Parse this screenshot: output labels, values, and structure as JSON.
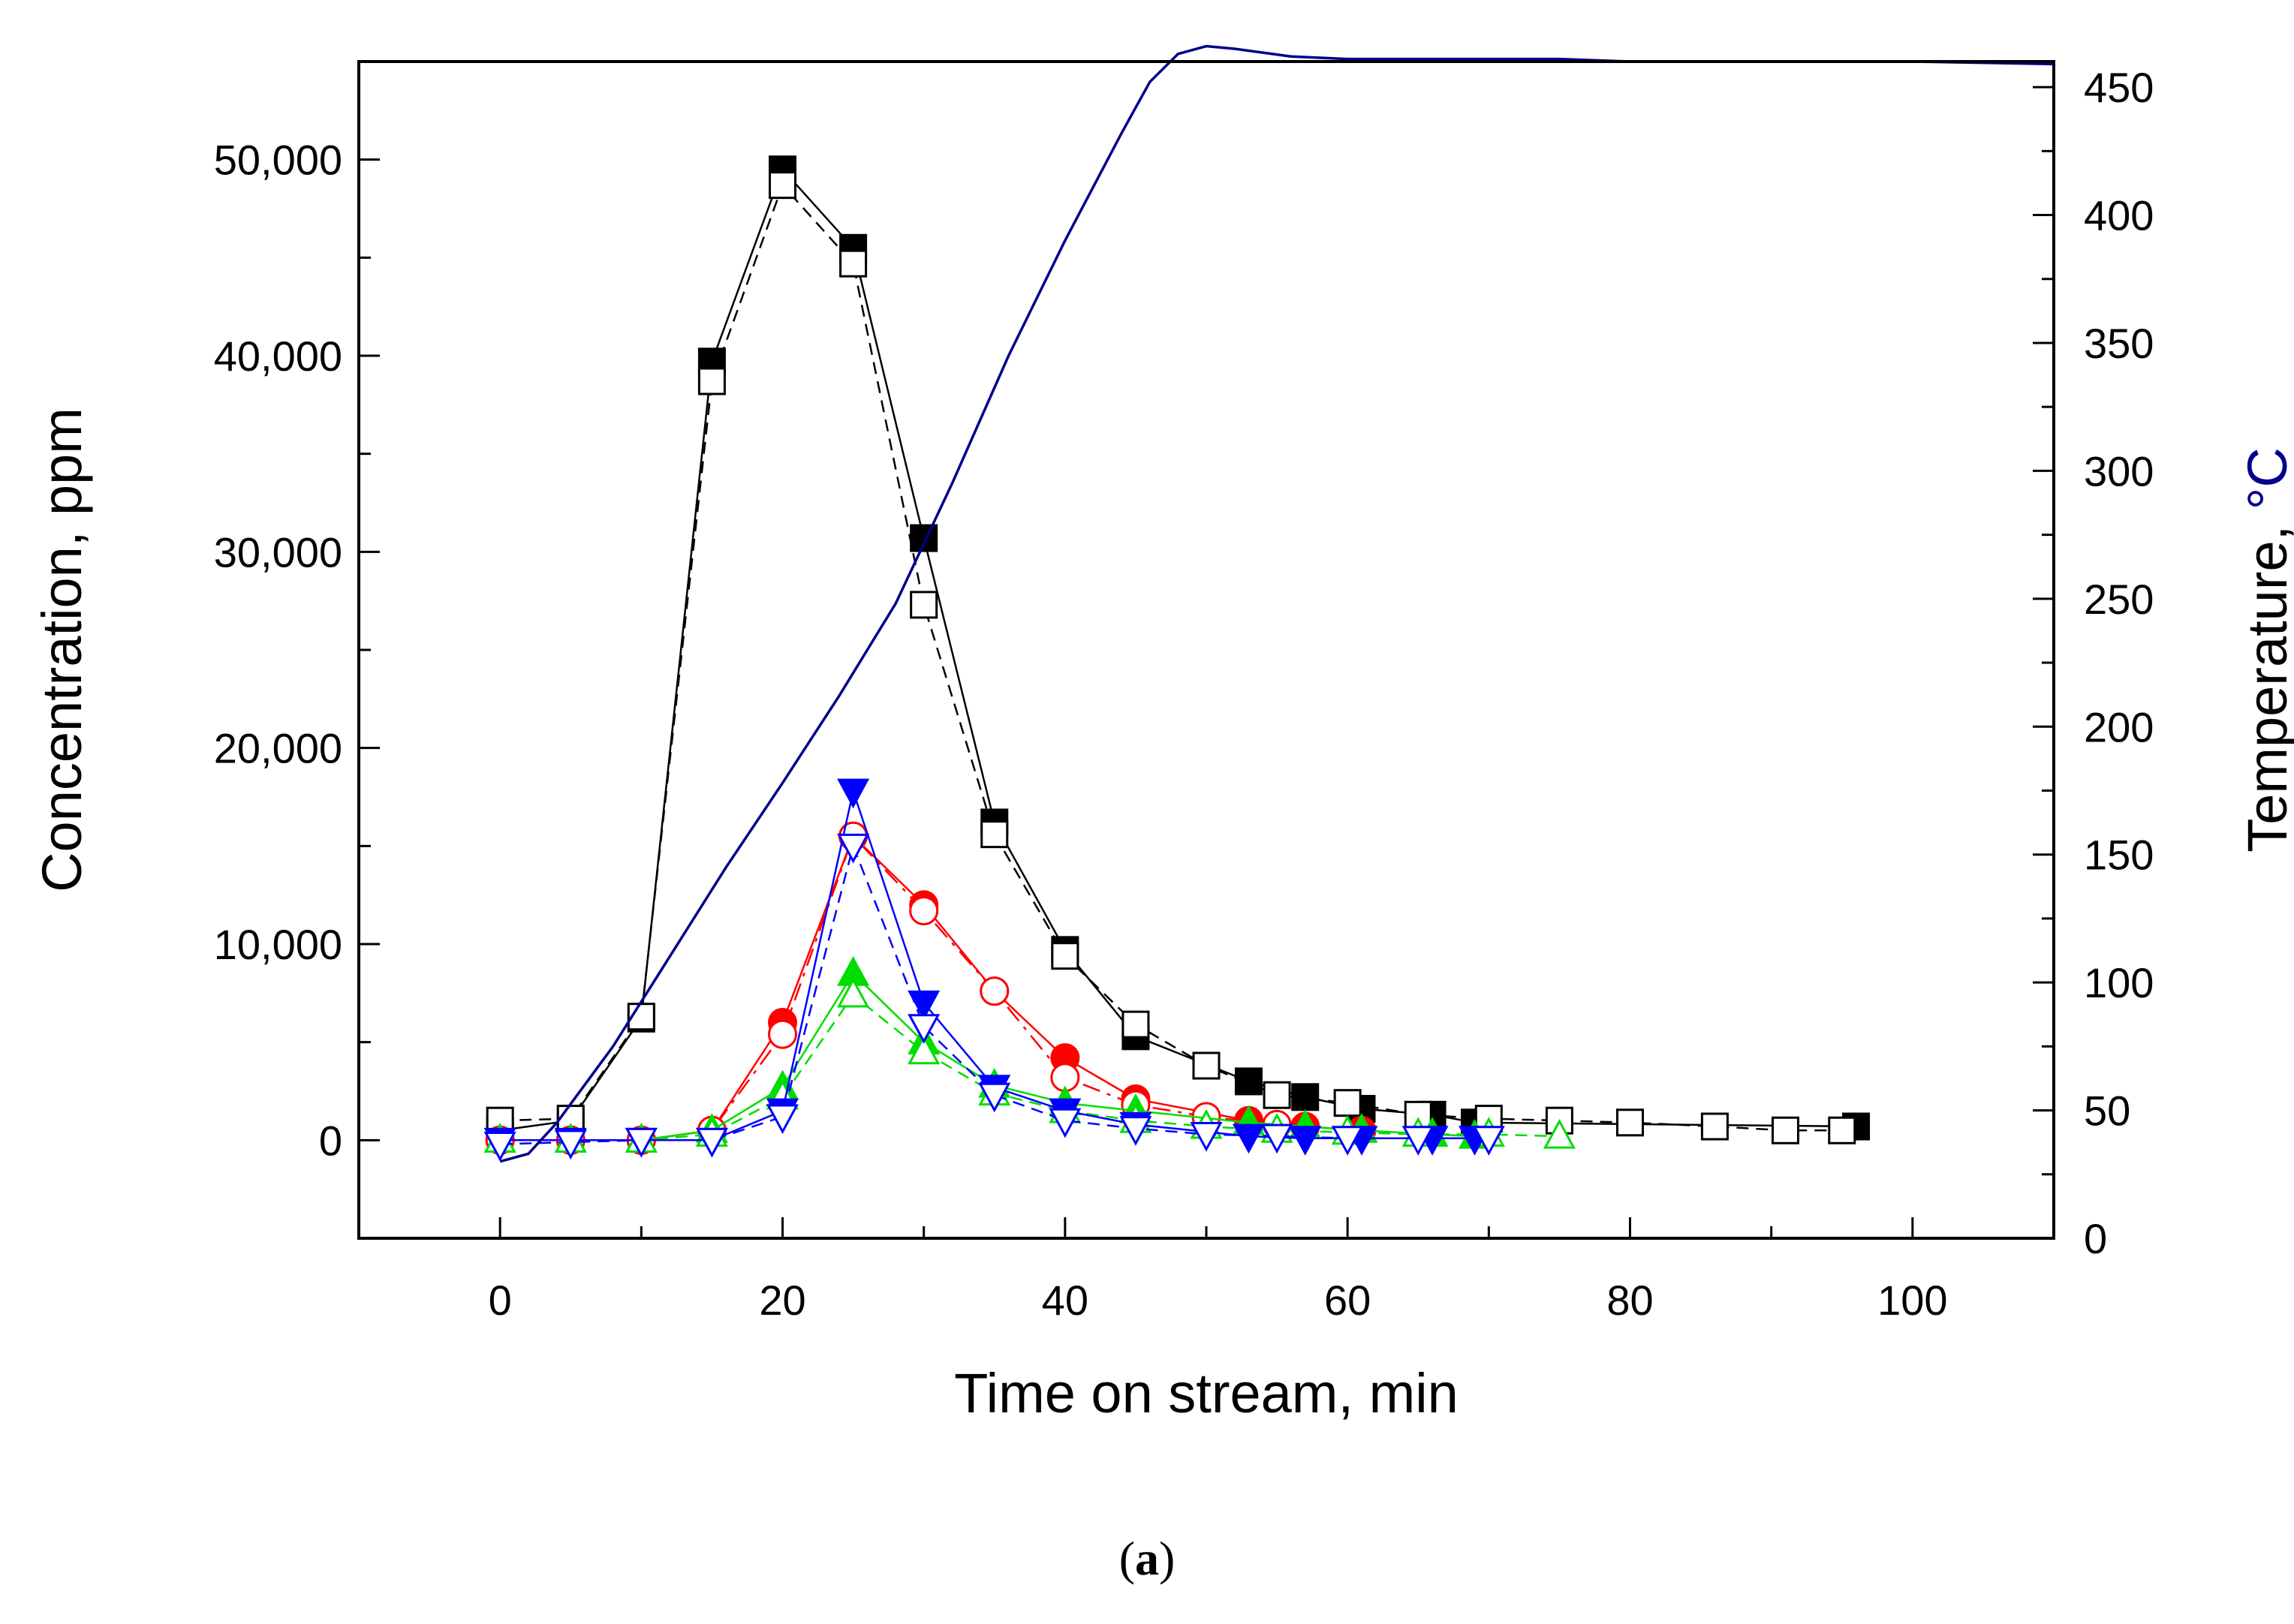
{
  "chart_data": {
    "type": "line",
    "title": "",
    "caption": {
      "open": "(",
      "letter": "a",
      "close": ")"
    },
    "xlabel": "Time on stream, min",
    "ylabel": "Concentration, ppm",
    "y2label_text": "Temperature, ",
    "y2label_unit": "°C",
    "xlim": [
      -10,
      110
    ],
    "ylim": [
      -5000,
      55000
    ],
    "y2lim": [
      0,
      460
    ],
    "x_ticks": [
      0,
      20,
      40,
      60,
      80,
      100
    ],
    "x_tick_labels": [
      "0",
      "20",
      "40",
      "60",
      "80",
      "100"
    ],
    "y_ticks": [
      0,
      10000,
      20000,
      30000,
      40000,
      50000
    ],
    "y_tick_labels": [
      "0",
      "10,000",
      "20,000",
      "30,000",
      "40,000",
      "50,000"
    ],
    "y2_ticks": [
      0,
      50,
      100,
      150,
      200,
      250,
      300,
      350,
      400,
      450
    ],
    "y2_tick_labels": [
      "0",
      "50",
      "100",
      "150",
      "200",
      "250",
      "300",
      "350",
      "400",
      "450"
    ],
    "grid": false,
    "legend": "none",
    "series": [
      {
        "name": "black filled squares",
        "axis": "left",
        "color": "#000000",
        "marker": "square",
        "filled": true,
        "dash": "solid",
        "x": [
          0,
          5,
          10,
          15,
          20,
          25,
          30,
          35,
          40,
          45,
          53,
          57,
          61,
          66,
          69,
          96
        ],
        "y": [
          500,
          1000,
          6200,
          39700,
          49500,
          45500,
          30700,
          16200,
          9700,
          5300,
          3000,
          2200,
          1600,
          1300,
          900,
          700
        ]
      },
      {
        "name": "black open squares",
        "axis": "left",
        "color": "#000000",
        "marker": "square",
        "filled": false,
        "dash": "dashed",
        "x": [
          0,
          5,
          10,
          15,
          20,
          25,
          30,
          35,
          40,
          45,
          50,
          55,
          60,
          65,
          70,
          75,
          80,
          86,
          91,
          95
        ],
        "y": [
          1000,
          1100,
          6300,
          38700,
          48700,
          44700,
          27300,
          15600,
          9400,
          5900,
          3800,
          2300,
          1900,
          1300,
          1100,
          1000,
          900,
          700,
          500,
          500
        ]
      },
      {
        "name": "red filled circles",
        "axis": "left",
        "color": "#ff0000",
        "marker": "circle",
        "filled": true,
        "dash": "solid",
        "x": [
          0,
          5,
          10,
          15,
          20,
          25,
          30,
          35,
          40,
          45,
          53,
          57,
          61
        ],
        "y": [
          0,
          0,
          0,
          500,
          6000,
          15500,
          12000,
          7600,
          4200,
          2100,
          1000,
          700,
          500
        ]
      },
      {
        "name": "red open circles",
        "axis": "left",
        "color": "#ff0000",
        "marker": "circle",
        "filled": false,
        "dash": "dashdot",
        "x": [
          0,
          5,
          10,
          15,
          20,
          25,
          30,
          35,
          40,
          45,
          50,
          55
        ],
        "y": [
          0,
          0,
          0,
          500,
          5400,
          15500,
          11700,
          7600,
          3200,
          1800,
          1200,
          800
        ]
      },
      {
        "name": "green filled triangles",
        "axis": "left",
        "color": "#00dd00",
        "marker": "triangle-up",
        "filled": true,
        "dash": "solid",
        "x": [
          0,
          5,
          10,
          15,
          20,
          25,
          30,
          35,
          40,
          45,
          53,
          57,
          61,
          66,
          69
        ],
        "y": [
          0,
          0,
          0,
          500,
          2700,
          8500,
          5000,
          2800,
          1900,
          1500,
          900,
          700,
          500,
          300,
          200
        ]
      },
      {
        "name": "green open triangles",
        "axis": "left",
        "color": "#00dd00",
        "marker": "triangle-up",
        "filled": false,
        "dash": "dashed",
        "x": [
          0,
          5,
          10,
          15,
          20,
          25,
          30,
          35,
          40,
          45,
          50,
          55,
          60,
          65,
          70,
          75
        ],
        "y": [
          0,
          0,
          0,
          300,
          2200,
          7400,
          4500,
          2400,
          1500,
          1000,
          700,
          500,
          400,
          300,
          300,
          200
        ]
      },
      {
        "name": "blue filled triangles down",
        "axis": "left",
        "color": "#0000ff",
        "marker": "triangle-down",
        "filled": true,
        "dash": "solid",
        "x": [
          0,
          5,
          10,
          15,
          20,
          25,
          30,
          35,
          40,
          45,
          53,
          57,
          61,
          66,
          69
        ],
        "y": [
          0,
          0,
          0,
          0,
          1500,
          17800,
          7000,
          2700,
          1500,
          800,
          200,
          100,
          100,
          100,
          100
        ]
      },
      {
        "name": "blue open triangles down",
        "axis": "left",
        "color": "#0000ff",
        "marker": "triangle-down",
        "filled": false,
        "dash": "dashed",
        "x": [
          0,
          5,
          10,
          15,
          20,
          25,
          30,
          35,
          40,
          45,
          50,
          55,
          60,
          65,
          70
        ],
        "y": [
          -200,
          -100,
          0,
          0,
          1200,
          15000,
          5800,
          2300,
          1000,
          600,
          300,
          200,
          100,
          100,
          100
        ]
      },
      {
        "name": "Temperature",
        "axis": "right",
        "color": "#00008b",
        "marker": "none",
        "filled": false,
        "dash": "solid",
        "x": [
          0,
          2,
          4,
          8,
          12,
          16,
          20,
          24,
          28,
          32,
          36,
          40,
          44,
          46,
          48,
          50,
          52,
          56,
          60,
          75,
          80,
          100,
          110
        ],
        "y": [
          30,
          33,
          45,
          75,
          110,
          145,
          178,
          212,
          248,
          295,
          345,
          390,
          432,
          452,
          463,
          466,
          465,
          462,
          461,
          461,
          460,
          460,
          459
        ]
      }
    ]
  }
}
